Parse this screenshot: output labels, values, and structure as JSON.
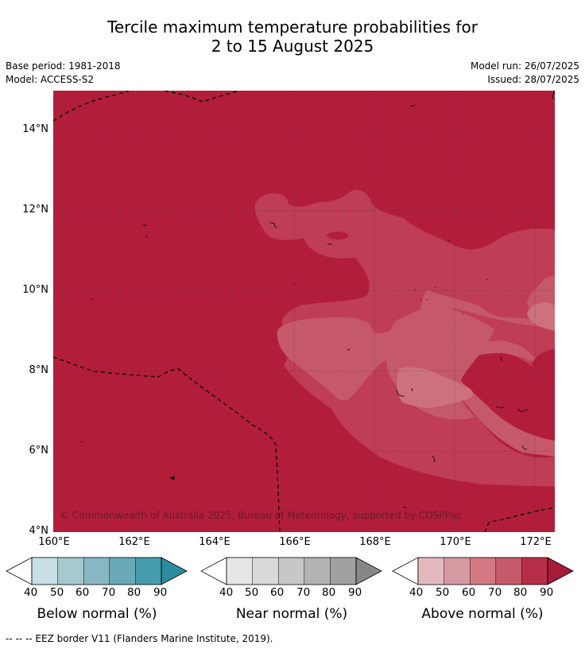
{
  "title_line1": "Tercile maximum temperature probabilities for",
  "title_line2": "2 to 15 August 2025",
  "base_period": "Base period: 1981-2018",
  "model": "Model: ACCESS-S2",
  "model_run": "Model run: 26/07/2025",
  "issued": "Issued: 28/07/2025",
  "map": {
    "lat_ticks": [
      "14°N",
      "12°N",
      "10°N",
      "8°N",
      "6°N",
      "4°N"
    ],
    "lon_ticks": [
      "160°E",
      "162°E",
      "164°E",
      "166°E",
      "168°E",
      "170°E",
      "172°E"
    ],
    "copyright": "© Commonwealth of Australia 2025, Bureau of Meteorology, supported by COSPPac",
    "background_category": "Above normal 80-90%",
    "colors": {
      "above_90": "#b21e3a",
      "above_80": "#bf3d55",
      "above_70": "#c6586b",
      "above_60": "#cd717f"
    }
  },
  "colorbars": [
    {
      "title": "Below normal (%)",
      "ticks": [
        "40",
        "50",
        "60",
        "70",
        "80",
        "90"
      ],
      "colors": [
        "#ffffff",
        "#c7dfe5",
        "#a6c8cf",
        "#87b7c3",
        "#69a9b8",
        "#479dae",
        "#2c8c9f"
      ]
    },
    {
      "title": "Near normal (%)",
      "ticks": [
        "40",
        "50",
        "60",
        "70",
        "80",
        "90"
      ],
      "colors": [
        "#ffffff",
        "#e6e6e6",
        "#d9d9d9",
        "#c7c7c7",
        "#b3b3b3",
        "#a0a0a0",
        "#878787"
      ]
    },
    {
      "title": "Above normal (%)",
      "ticks": [
        "40",
        "50",
        "60",
        "70",
        "80",
        "90"
      ],
      "colors": [
        "#ffffff",
        "#e3b9bf",
        "#d79aa2",
        "#d47983",
        "#c75a69",
        "#b72e47",
        "#a61a3a"
      ]
    }
  ],
  "footer": "--  --  -- EEZ border V11 (Flanders Marine Institute, 2019)."
}
